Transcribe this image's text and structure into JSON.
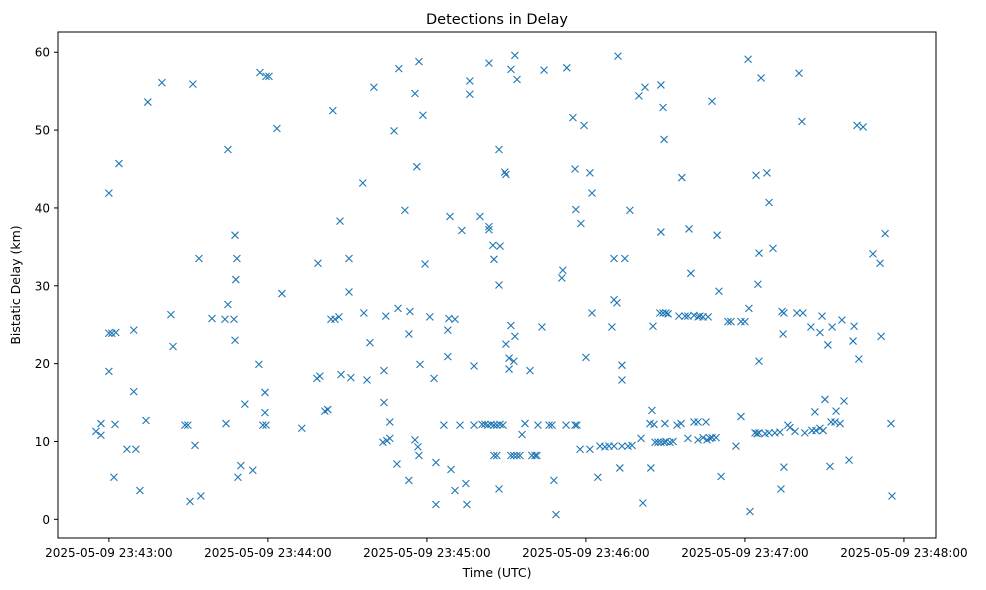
{
  "chart_data": {
    "type": "scatter",
    "title": "Detections in Delay",
    "xlabel": "Time (UTC)",
    "ylabel": "Bistatic Delay (km)",
    "x_unit": "seconds after 2025-05-09 23:43:00 UTC",
    "xlim": [
      -19.2,
      312.1
    ],
    "ylim": [
      -2.4,
      62.6
    ],
    "grid": false,
    "marker": "x",
    "color": "#1f77b4",
    "xticks": [
      {
        "value": 0,
        "label": "2025-05-09 23:43:00"
      },
      {
        "value": 60,
        "label": "2025-05-09 23:44:00"
      },
      {
        "value": 120,
        "label": "2025-05-09 23:45:00"
      },
      {
        "value": 180,
        "label": "2025-05-09 23:46:00"
      },
      {
        "value": 240,
        "label": "2025-05-09 23:47:00"
      },
      {
        "value": 300,
        "label": "2025-05-09 23:48:00"
      }
    ],
    "yticks": [
      {
        "value": 0,
        "label": "0"
      },
      {
        "value": 10,
        "label": "10"
      },
      {
        "value": 20,
        "label": "20"
      },
      {
        "value": 30,
        "label": "30"
      },
      {
        "value": 40,
        "label": "40"
      },
      {
        "value": 50,
        "label": "50"
      },
      {
        "value": 60,
        "label": "60"
      }
    ],
    "points": [
      [
        -4.9,
        11.3
      ],
      [
        -3.0,
        12.3
      ],
      [
        -3.0,
        10.8
      ],
      [
        0,
        41.9
      ],
      [
        0,
        19.0
      ],
      [
        0,
        23.9
      ],
      [
        1.1,
        23.9
      ],
      [
        2.6,
        24.0
      ],
      [
        1.9,
        5.4
      ],
      [
        2.3,
        12.2
      ],
      [
        3.8,
        45.7
      ],
      [
        6.8,
        9.0
      ],
      [
        9.4,
        24.3
      ],
      [
        9.4,
        16.4
      ],
      [
        10.2,
        9.0
      ],
      [
        11.7,
        3.7
      ],
      [
        14.0,
        12.7
      ],
      [
        14.7,
        53.6
      ],
      [
        20.0,
        56.1
      ],
      [
        23.4,
        26.3
      ],
      [
        24.2,
        22.2
      ],
      [
        28.7,
        12.1
      ],
      [
        29.8,
        12.1
      ],
      [
        31.7,
        55.9
      ],
      [
        30.6,
        2.3
      ],
      [
        34.7,
        3.0
      ],
      [
        32.5,
        9.5
      ],
      [
        34.0,
        33.5
      ],
      [
        38.9,
        25.8
      ],
      [
        44.2,
        12.3
      ],
      [
        44.9,
        47.5
      ],
      [
        44.9,
        27.6
      ],
      [
        43.8,
        25.7
      ],
      [
        47.2,
        25.7
      ],
      [
        47.6,
        36.5
      ],
      [
        48.3,
        33.5
      ],
      [
        47.9,
        30.8
      ],
      [
        47.6,
        23.0
      ],
      [
        48.7,
        5.4
      ],
      [
        49.8,
        6.9
      ],
      [
        51.3,
        14.8
      ],
      [
        54.3,
        6.3
      ],
      [
        56.6,
        19.9
      ],
      [
        57.0,
        57.4
      ],
      [
        59.3,
        56.9
      ],
      [
        60.4,
        56.9
      ],
      [
        58.1,
        12.1
      ],
      [
        59.3,
        12.1
      ],
      [
        58.9,
        16.3
      ],
      [
        58.9,
        13.7
      ],
      [
        63.4,
        50.2
      ],
      [
        65.3,
        29.0
      ],
      [
        72.8,
        11.7
      ],
      [
        78.5,
        18.1
      ],
      [
        79.6,
        18.4
      ],
      [
        78.9,
        32.9
      ],
      [
        81.5,
        13.9
      ],
      [
        82.6,
        14.1
      ],
      [
        84.5,
        52.5
      ],
      [
        83.8,
        25.7
      ],
      [
        85.3,
        25.7
      ],
      [
        86.8,
        26.0
      ],
      [
        87.2,
        38.3
      ],
      [
        87.6,
        18.6
      ],
      [
        90.6,
        33.5
      ],
      [
        90.6,
        29.2
      ],
      [
        91.3,
        18.2
      ],
      [
        95.8,
        43.2
      ],
      [
        96.2,
        26.5
      ],
      [
        97.4,
        17.9
      ],
      [
        98.5,
        22.7
      ],
      [
        100.0,
        55.5
      ],
      [
        103.4,
        9.9
      ],
      [
        104.9,
        10.1
      ],
      [
        106.0,
        10.4
      ],
      [
        103.8,
        15.0
      ],
      [
        103.8,
        19.1
      ],
      [
        104.5,
        26.1
      ],
      [
        106.0,
        12.5
      ],
      [
        107.6,
        49.9
      ],
      [
        108.7,
        7.1
      ],
      [
        109.4,
        57.9
      ],
      [
        109.1,
        27.1
      ],
      [
        111.7,
        39.7
      ],
      [
        113.2,
        23.8
      ],
      [
        113.2,
        5.0
      ],
      [
        113.6,
        26.7
      ],
      [
        115.5,
        54.7
      ],
      [
        115.5,
        10.2
      ],
      [
        116.6,
        9.3
      ],
      [
        117.0,
        8.2
      ],
      [
        117.0,
        58.8
      ],
      [
        116.2,
        45.3
      ],
      [
        117.4,
        19.9
      ],
      [
        118.5,
        51.9
      ],
      [
        119.3,
        32.8
      ],
      [
        121.1,
        26.0
      ],
      [
        122.7,
        18.1
      ],
      [
        123.4,
        7.3
      ],
      [
        123.4,
        1.9
      ],
      [
        126.4,
        12.1
      ],
      [
        127.9,
        24.3
      ],
      [
        127.9,
        20.9
      ],
      [
        128.3,
        25.8
      ],
      [
        128.7,
        38.9
      ],
      [
        129.1,
        6.4
      ],
      [
        130.6,
        25.7
      ],
      [
        130.6,
        3.7
      ],
      [
        132.5,
        12.1
      ],
      [
        133.2,
        37.1
      ],
      [
        134.7,
        4.6
      ],
      [
        135.1,
        1.9
      ],
      [
        136.2,
        56.3
      ],
      [
        136.2,
        54.6
      ],
      [
        137.8,
        19.7
      ],
      [
        137.8,
        12.1
      ],
      [
        140.0,
        38.9
      ],
      [
        140.8,
        12.2
      ],
      [
        141.9,
        12.2
      ],
      [
        143.0,
        12.1
      ],
      [
        144.2,
        12.2
      ],
      [
        145.3,
        12.1
      ],
      [
        146.4,
        12.1
      ],
      [
        147.6,
        12.2
      ],
      [
        148.7,
        12.1
      ],
      [
        143.4,
        58.6
      ],
      [
        143.4,
        37.6
      ],
      [
        143.4,
        37.2
      ],
      [
        144.9,
        35.2
      ],
      [
        145.3,
        33.4
      ],
      [
        147.6,
        35.1
      ],
      [
        147.2,
        30.1
      ],
      [
        145.3,
        8.2
      ],
      [
        146.4,
        8.2
      ],
      [
        147.2,
        47.5
      ],
      [
        147.2,
        3.9
      ],
      [
        149.4,
        44.6
      ],
      [
        149.8,
        44.3
      ],
      [
        149.8,
        22.5
      ],
      [
        151.0,
        20.7
      ],
      [
        151.0,
        19.3
      ],
      [
        152.8,
        20.3
      ],
      [
        151.7,
        57.8
      ],
      [
        153.2,
        59.6
      ],
      [
        154.0,
        56.5
      ],
      [
        151.7,
        24.9
      ],
      [
        153.2,
        23.5
      ],
      [
        151.7,
        8.2
      ],
      [
        152.8,
        8.2
      ],
      [
        154.0,
        8.2
      ],
      [
        155.1,
        8.2
      ],
      [
        159.6,
        8.2
      ],
      [
        160.8,
        8.2
      ],
      [
        161.5,
        8.2
      ],
      [
        155.9,
        10.9
      ],
      [
        157.0,
        12.3
      ],
      [
        158.9,
        19.1
      ],
      [
        161.9,
        12.1
      ],
      [
        163.4,
        24.7
      ],
      [
        164.2,
        57.7
      ],
      [
        166.1,
        12.1
      ],
      [
        167.2,
        12.1
      ],
      [
        167.9,
        5.0
      ],
      [
        168.7,
        0.6
      ],
      [
        170.9,
        31.0
      ],
      [
        171.3,
        32.0
      ],
      [
        172.8,
        58.0
      ],
      [
        172.5,
        12.1
      ],
      [
        175.1,
        51.6
      ],
      [
        175.9,
        45.0
      ],
      [
        176.2,
        39.8
      ],
      [
        178.1,
        38.0
      ],
      [
        175.9,
        12.1
      ],
      [
        176.6,
        12.1
      ],
      [
        177.8,
        9.0
      ],
      [
        179.3,
        50.6
      ],
      [
        180.0,
        20.8
      ],
      [
        181.5,
        9.0
      ],
      [
        181.5,
        44.5
      ],
      [
        182.3,
        41.9
      ],
      [
        182.3,
        26.5
      ],
      [
        184.5,
        5.4
      ],
      [
        185.3,
        9.4
      ],
      [
        187.2,
        9.3
      ],
      [
        188.7,
        9.4
      ],
      [
        190.6,
        9.4
      ],
      [
        189.8,
        24.7
      ],
      [
        190.6,
        28.2
      ],
      [
        190.6,
        33.5
      ],
      [
        191.7,
        27.8
      ],
      [
        192.1,
        59.5
      ],
      [
        192.8,
        6.6
      ],
      [
        193.6,
        19.8
      ],
      [
        193.6,
        17.9
      ],
      [
        194.7,
        33.5
      ],
      [
        193.6,
        9.4
      ],
      [
        195.9,
        9.4
      ],
      [
        197.4,
        9.5
      ],
      [
        196.6,
        39.7
      ],
      [
        200.0,
        54.4
      ],
      [
        202.3,
        55.5
      ],
      [
        200.8,
        10.4
      ],
      [
        201.5,
        2.1
      ],
      [
        204.2,
        12.3
      ],
      [
        204.5,
        6.6
      ],
      [
        204.9,
        14.0
      ],
      [
        205.7,
        12.2
      ],
      [
        205.3,
        24.8
      ],
      [
        206.1,
        9.9
      ],
      [
        207.2,
        9.9
      ],
      [
        208.3,
        9.9
      ],
      [
        209.5,
        9.9
      ],
      [
        210.2,
        10.0
      ],
      [
        211.7,
        9.9
      ],
      [
        212.9,
        10.0
      ],
      [
        208.3,
        55.8
      ],
      [
        209.1,
        52.9
      ],
      [
        209.5,
        48.8
      ],
      [
        208.3,
        36.9
      ],
      [
        207.9,
        26.5
      ],
      [
        209.1,
        26.5
      ],
      [
        210.2,
        26.5
      ],
      [
        211.0,
        26.4
      ],
      [
        209.8,
        12.3
      ],
      [
        214.4,
        12.1
      ],
      [
        215.9,
        12.3
      ],
      [
        215.1,
        26.1
      ],
      [
        216.2,
        43.9
      ],
      [
        218.5,
        10.4
      ],
      [
        218.9,
        37.3
      ],
      [
        219.6,
        31.6
      ],
      [
        217.4,
        26.1
      ],
      [
        218.5,
        26.1
      ],
      [
        220.8,
        26.2
      ],
      [
        222.3,
        26.0
      ],
      [
        223.0,
        26.1
      ],
      [
        224.2,
        26.0
      ],
      [
        226.1,
        26.0
      ],
      [
        220.8,
        12.5
      ],
      [
        222.3,
        12.5
      ],
      [
        222.3,
        10.2
      ],
      [
        224.2,
        10.5
      ],
      [
        225.7,
        10.2
      ],
      [
        226.8,
        10.4
      ],
      [
        227.6,
        10.5
      ],
      [
        229.1,
        10.5
      ],
      [
        225.3,
        12.5
      ],
      [
        227.6,
        53.7
      ],
      [
        229.5,
        36.5
      ],
      [
        230.2,
        29.3
      ],
      [
        231.0,
        5.5
      ],
      [
        233.6,
        25.4
      ],
      [
        234.7,
        25.4
      ],
      [
        236.6,
        9.4
      ],
      [
        238.5,
        13.2
      ],
      [
        238.5,
        25.4
      ],
      [
        240.0,
        25.4
      ],
      [
        241.2,
        59.1
      ],
      [
        241.5,
        27.1
      ],
      [
        241.9,
        1.0
      ],
      [
        244.2,
        44.2
      ],
      [
        243.8,
        11.1
      ],
      [
        244.6,
        11.0
      ],
      [
        245.3,
        11.1
      ],
      [
        247.6,
        11.0
      ],
      [
        249.1,
        11.1
      ],
      [
        251.3,
        11.1
      ],
      [
        253.2,
        11.2
      ],
      [
        258.9,
        11.3
      ],
      [
        262.6,
        11.1
      ],
      [
        244.9,
        30.2
      ],
      [
        245.3,
        34.2
      ],
      [
        245.3,
        20.3
      ],
      [
        246.1,
        56.7
      ],
      [
        248.3,
        44.5
      ],
      [
        249.1,
        40.7
      ],
      [
        250.6,
        34.8
      ],
      [
        253.6,
        3.9
      ],
      [
        254.0,
        26.7
      ],
      [
        254.7,
        26.5
      ],
      [
        254.4,
        23.8
      ],
      [
        254.7,
        6.7
      ],
      [
        256.2,
        12.1
      ],
      [
        257.0,
        11.8
      ],
      [
        260.4,
        57.3
      ],
      [
        259.6,
        26.5
      ],
      [
        261.9,
        26.5
      ],
      [
        261.5,
        51.1
      ],
      [
        264.9,
        24.7
      ],
      [
        265.3,
        11.4
      ],
      [
        266.8,
        11.4
      ],
      [
        268.3,
        11.7
      ],
      [
        269.5,
        11.4
      ],
      [
        266.4,
        13.8
      ],
      [
        268.3,
        24.0
      ],
      [
        269.1,
        26.1
      ],
      [
        270.2,
        15.4
      ],
      [
        271.3,
        22.4
      ],
      [
        272.1,
        6.8
      ],
      [
        272.5,
        12.5
      ],
      [
        274.0,
        12.5
      ],
      [
        272.9,
        24.7
      ],
      [
        274.4,
        13.9
      ],
      [
        275.9,
        12.3
      ],
      [
        276.6,
        25.6
      ],
      [
        277.4,
        15.2
      ],
      [
        279.3,
        7.6
      ],
      [
        280.8,
        22.9
      ],
      [
        281.2,
        24.8
      ],
      [
        282.3,
        50.6
      ],
      [
        284.6,
        50.4
      ],
      [
        283.0,
        20.6
      ],
      [
        288.3,
        34.1
      ],
      [
        291.0,
        32.9
      ],
      [
        291.4,
        23.5
      ],
      [
        292.9,
        36.7
      ],
      [
        295.1,
        12.3
      ],
      [
        295.5,
        3.0
      ]
    ]
  }
}
